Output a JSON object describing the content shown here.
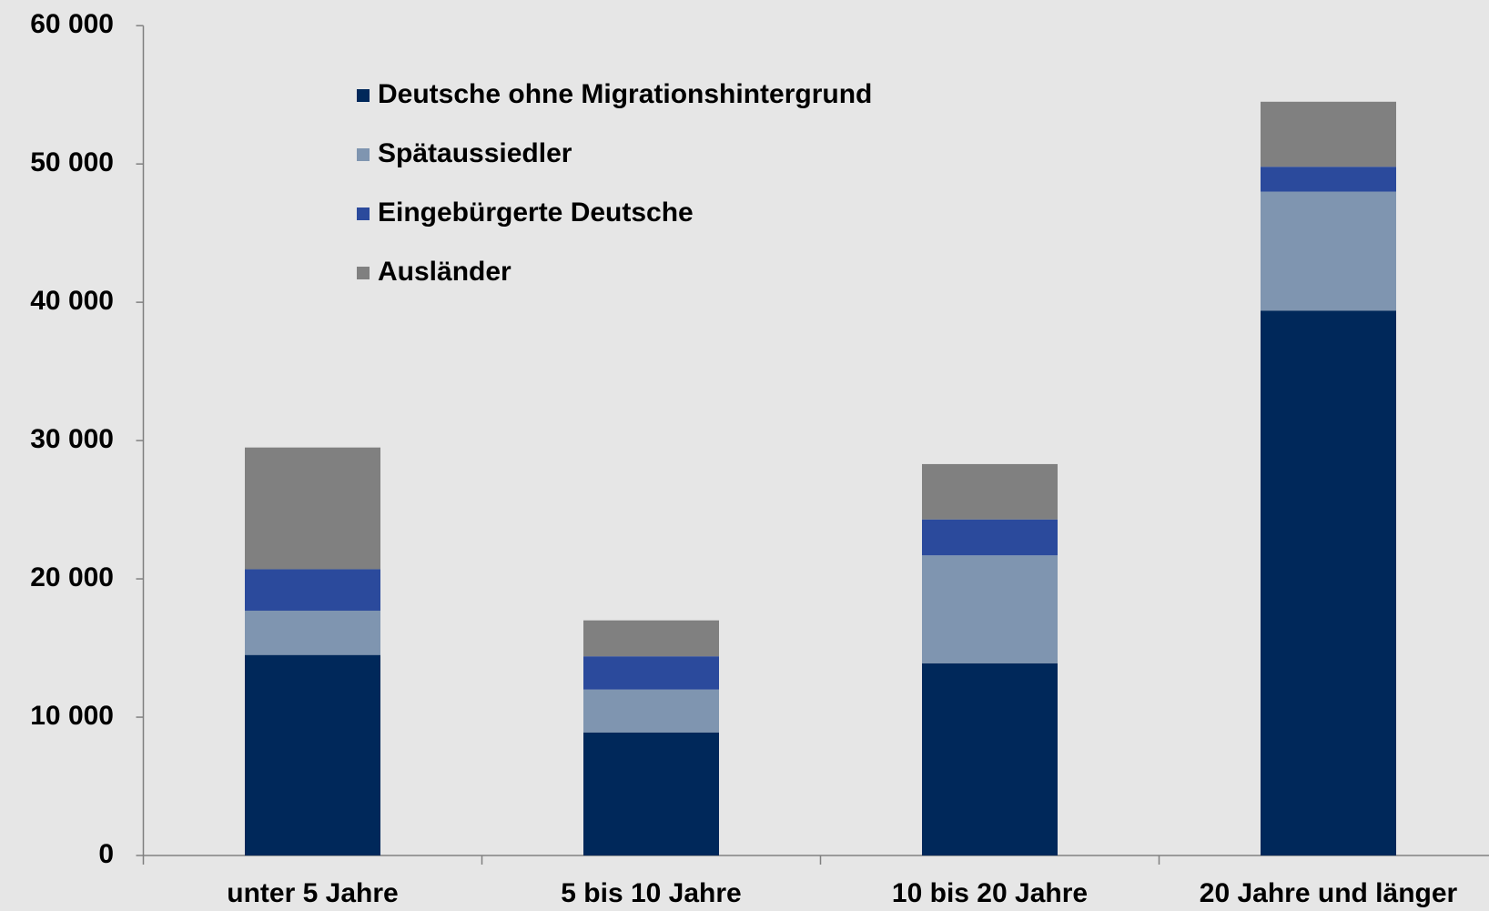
{
  "chart_data": {
    "type": "stacked_bar",
    "categories": [
      "unter 5 Jahre",
      "5 bis 10 Jahre",
      "10 bis 20 Jahre",
      "20 Jahre und länger"
    ],
    "series": [
      {
        "name": "Deutsche ohne Migrationshintergrund",
        "color": "#00285a",
        "values": [
          14500,
          8900,
          13900,
          39400
        ]
      },
      {
        "name": "Spätaussiedler",
        "color": "#7f95b0",
        "values": [
          3200,
          3100,
          7800,
          8600
        ]
      },
      {
        "name": "Eingebürgerte Deutsche",
        "color": "#2b4a9c",
        "values": [
          3000,
          2400,
          2600,
          1800
        ]
      },
      {
        "name": "Ausländer",
        "color": "#808080",
        "values": [
          8800,
          2600,
          4000,
          4700
        ]
      }
    ],
    "ylim": [
      0,
      60000
    ],
    "yticks": [
      0,
      {
        "value": 10000,
        "label": "10 000"
      },
      {
        "value": 20000,
        "label": "20 000"
      },
      {
        "value": 30000,
        "label": "30 000"
      },
      {
        "value": 40000,
        "label": "40 000"
      },
      {
        "value": 50000,
        "label": "50 000"
      },
      {
        "value": 60000,
        "label": "60 000"
      }
    ],
    "legend": "top-left"
  }
}
